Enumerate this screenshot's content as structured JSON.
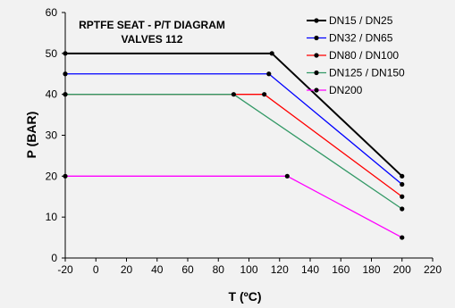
{
  "chart_data": {
    "type": "line",
    "title": [
      "RPTFE SEAT - P/T DIAGRAM",
      "VALVES 112"
    ],
    "xlabel": "T (ºC)",
    "ylabel": "P (BAR)",
    "xlim": [
      -20,
      220
    ],
    "ylim": [
      0,
      60
    ],
    "xticks": [
      -20,
      0,
      20,
      40,
      60,
      80,
      100,
      120,
      140,
      160,
      180,
      200,
      220
    ],
    "yticks": [
      0,
      10,
      20,
      30,
      40,
      50,
      60
    ],
    "grid": false,
    "legend_position": "top-right",
    "series": [
      {
        "name": "DN15 / DN25",
        "color": "#000000",
        "points": [
          [
            -20,
            50
          ],
          [
            115,
            50
          ],
          [
            200,
            20
          ]
        ]
      },
      {
        "name": "DN32 / DN65",
        "color": "#0000ff",
        "points": [
          [
            -20,
            45
          ],
          [
            113,
            45
          ],
          [
            200,
            18
          ]
        ]
      },
      {
        "name": "DN80 / DN100",
        "color": "#ff0000",
        "points": [
          [
            -20,
            40
          ],
          [
            110,
            40
          ],
          [
            200,
            15
          ]
        ]
      },
      {
        "name": "DN125 / DN150",
        "color": "#339966",
        "points": [
          [
            -20,
            40
          ],
          [
            90,
            40
          ],
          [
            200,
            12
          ]
        ]
      },
      {
        "name": "DN200",
        "color": "#ff00ff",
        "points": [
          [
            -20,
            20
          ],
          [
            125,
            20
          ],
          [
            200,
            5
          ]
        ]
      }
    ]
  }
}
